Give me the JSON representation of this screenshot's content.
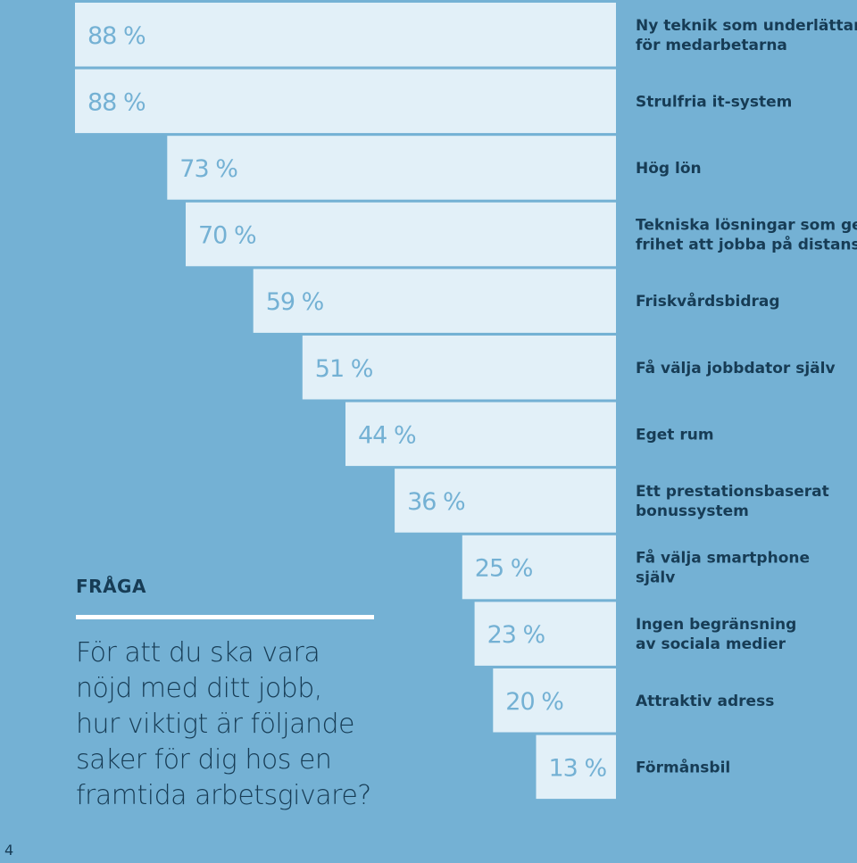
{
  "colors": {
    "background": "#74b1d4",
    "bar": "#e2f0f8",
    "value_text": "#74b1d4",
    "label_text": "#173c55",
    "rule": "#ffffff"
  },
  "chart_data": {
    "type": "bar",
    "orientation": "horizontal",
    "bar_alignment": "right",
    "categories": [
      [
        "Ny teknik som underlättar",
        "för medarbetarna"
      ],
      [
        "Strulfria it-system"
      ],
      [
        "Hög lön"
      ],
      [
        "Tekniska lösningar som ger",
        "frihet att jobba på distans"
      ],
      [
        "Friskvårdsbidrag"
      ],
      [
        "Få välja jobbdator själv"
      ],
      [
        "Eget rum"
      ],
      [
        "Ett prestationsbaserat",
        "bonussystem"
      ],
      [
        "Få välja smartphone",
        "själv"
      ],
      [
        "Ingen begränsning",
        "av sociala medier"
      ],
      [
        "Attraktiv adress"
      ],
      [
        "Förmånsbil"
      ]
    ],
    "values": [
      88,
      88,
      73,
      70,
      59,
      51,
      44,
      36,
      25,
      23,
      20,
      13
    ],
    "value_labels": [
      "88 %",
      "88 %",
      "73 %",
      "70 %",
      "59 %",
      "51 %",
      "44 %",
      "36 %",
      "25 %",
      "23 %",
      "20 %",
      "13 %"
    ],
    "xlim": [
      0,
      88
    ],
    "legend": "none",
    "grid": false
  },
  "question": {
    "heading": "FRÅGA",
    "lines": [
      "För att du ska vara",
      "nöjd med ditt jobb,",
      "hur viktigt är följande",
      "saker för dig hos en",
      "framtida arbetsgivare?"
    ]
  },
  "page_number": "4"
}
